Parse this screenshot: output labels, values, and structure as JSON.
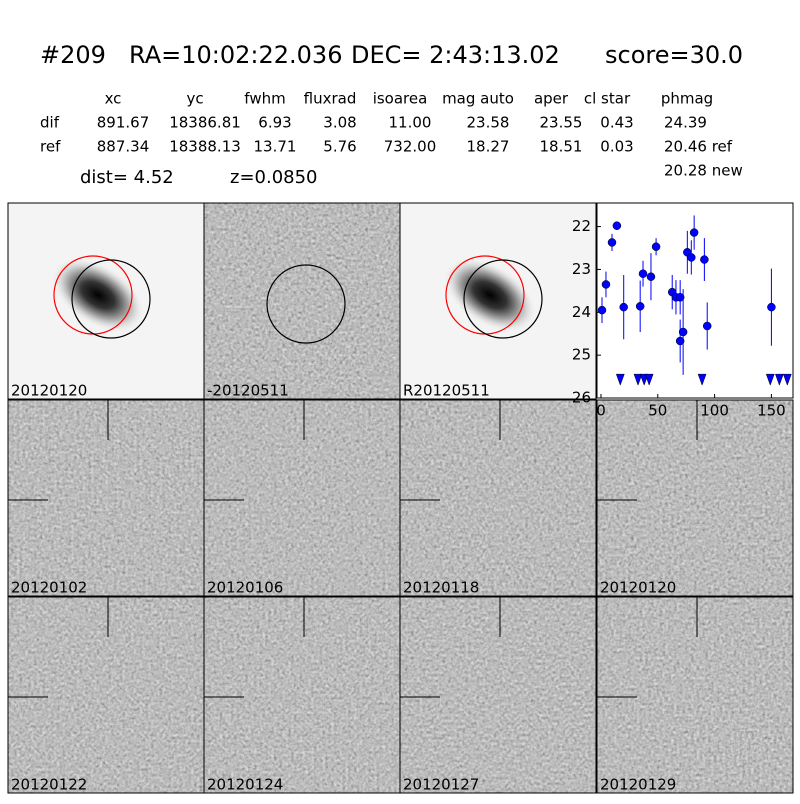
{
  "header": {
    "id": "#209",
    "ra": "RA=10:02:22.036",
    "dec": "DEC= 2:43:13.02",
    "score": "score=30.0"
  },
  "table": {
    "columns": [
      "xc",
      "yc",
      "fwhm",
      "fluxrad",
      "isoarea",
      "mag auto",
      "aper",
      "cl star",
      "phmag"
    ],
    "rows": [
      [
        "dif",
        "891.67",
        "18386.81",
        "6.93",
        "3.08",
        "11.00",
        "23.58",
        "23.55",
        "0.43",
        "24.39"
      ],
      [
        "ref",
        "887.34",
        "18388.13",
        "13.71",
        "5.76",
        "732.00",
        "18.27",
        "18.51",
        "0.03",
        "20.46 ref"
      ]
    ],
    "extra": "20.28 new"
  },
  "dist": "dist=  4.52",
  "z": "z=0.0850",
  "panels": [
    {
      "label": "20120120"
    },
    {
      "label": "-20120511"
    },
    {
      "label": "R20120511"
    },
    {
      "label": "20120102"
    },
    {
      "label": "20120106"
    },
    {
      "label": "20120118"
    },
    {
      "label": "20120120",
      "color": "#ff0000"
    },
    {
      "label": "20120122"
    },
    {
      "label": "20120124"
    },
    {
      "label": "20120127"
    },
    {
      "label": "20120129"
    }
  ],
  "chart_data": {
    "type": "scatter",
    "xlim": [
      -3.5,
      169
    ],
    "ylim": [
      26,
      21.45
    ],
    "xticks": [
      0,
      50,
      100,
      150
    ],
    "yticks": [
      22,
      23,
      24,
      25,
      26
    ],
    "series": [
      {
        "color": "#0000ff",
        "marker": "circle",
        "x": [
          0.9,
          4.4,
          9.7,
          14,
          20,
          34.5,
          37,
          44,
          48.5,
          62.7,
          66,
          69.7,
          69.7,
          72.3,
          76,
          79.5,
          82,
          91,
          93.5,
          150
        ],
        "values": [
          23.95,
          23.35,
          22.37,
          21.98,
          23.88,
          23.86,
          23.1,
          23.17,
          22.47,
          23.53,
          23.65,
          23.65,
          24.67,
          24.46,
          22.6,
          22.72,
          22.14,
          22.77,
          24.32,
          23.88
        ],
        "errors": [
          0.3,
          0.3,
          0.2,
          0.1,
          0.75,
          0.6,
          0.3,
          0.55,
          0.2,
          0.4,
          0.4,
          0.4,
          0.5,
          1.0,
          0.5,
          0.4,
          0.4,
          0.5,
          0.55,
          0.9
        ]
      },
      {
        "color": "#0000ff",
        "marker": "triangle-down",
        "x": [
          17,
          32.6,
          38,
          42.4,
          89,
          149,
          157,
          164
        ],
        "values": [
          25.56,
          25.56,
          25.56,
          25.56,
          25.56,
          25.56,
          25.56,
          25.56
        ]
      }
    ]
  }
}
